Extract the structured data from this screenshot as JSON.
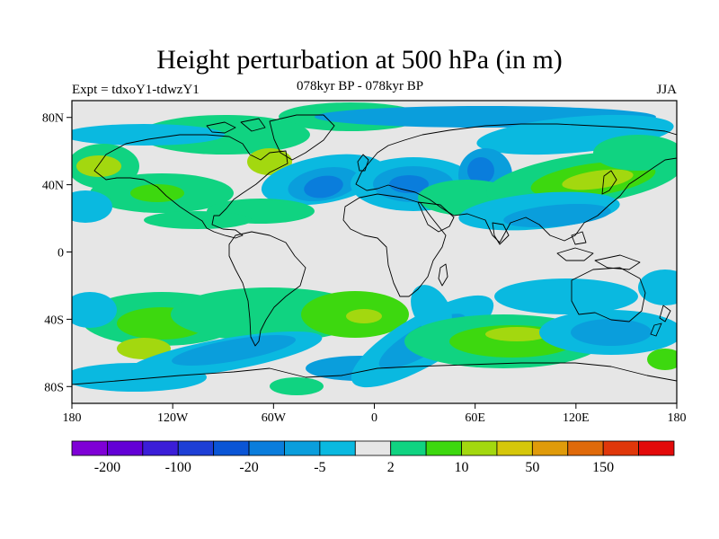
{
  "figure": {
    "title": "Height perturbation at 500 hPa (in m)",
    "left_label": "Expt = tdxoY1-tdwzY1",
    "center_label": "078kyr BP - 078kyr BP",
    "right_label": "JJA"
  },
  "map": {
    "projection": "cylindrical equidistant",
    "lon_range": [
      -180,
      180
    ],
    "lat_range": [
      -90,
      90
    ],
    "x_tick_labels": [
      "180",
      "120W",
      "60W",
      "0",
      "60E",
      "120E",
      "180"
    ],
    "y_tick_labels": [
      "80N",
      "40N",
      "0",
      "40S",
      "80S"
    ],
    "background_color": "#e6e6e6",
    "coastlines": true
  },
  "colorbar": {
    "colors": [
      "#7f00d6",
      "#6300d6",
      "#3b1ed8",
      "#1e3fd6",
      "#0a55d6",
      "#0a7ddc",
      "#0a9edc",
      "#0ab9e0",
      "#e6e6e6",
      "#10d381",
      "#3dd80f",
      "#a3d80f",
      "#d6c70a",
      "#e09b0a",
      "#e06a0a",
      "#e0370a",
      "#e30a0a"
    ],
    "labels": [
      {
        "text": "-200",
        "after_box": 1
      },
      {
        "text": "-100",
        "after_box": 3
      },
      {
        "text": "-20",
        "after_box": 5
      },
      {
        "text": "-5",
        "after_box": 7
      },
      {
        "text": "2",
        "after_box": 9
      },
      {
        "text": "10",
        "after_box": 11
      },
      {
        "text": "50",
        "after_box": 13
      },
      {
        "text": "150",
        "after_box": 15
      }
    ]
  },
  "field_colors": {
    "neg_strong": "#0a7ddc",
    "neg_mid": "#0a9edc",
    "neg_weak": "#0ab9e0",
    "pos_weak": "#10d381",
    "pos_mid": "#3dd80f",
    "pos_strong": "#a3d80f",
    "pos_stronger": "#d6c70a"
  }
}
